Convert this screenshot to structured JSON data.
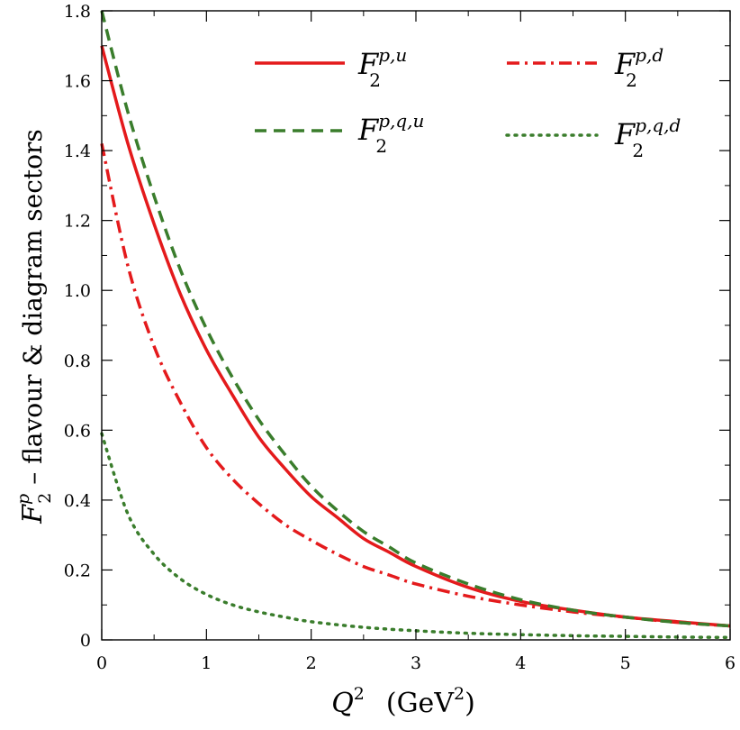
{
  "chart_data": {
    "type": "line",
    "xlabel_main": "Q",
    "xlabel_sup": "2",
    "xlabel_unit_open": "(GeV",
    "xlabel_unit_sup": "2",
    "xlabel_unit_close": ")",
    "ylabel_main": "F",
    "ylabel_sub": "2",
    "ylabel_sup": "p",
    "ylabel_rest": " – flavour & diagram sectors",
    "xlim": [
      0,
      6
    ],
    "ylim": [
      0,
      1.8
    ],
    "x_ticks": [
      "0",
      "1",
      "2",
      "3",
      "4",
      "5",
      "6"
    ],
    "y_ticks": [
      "0",
      "0.2",
      "0.4",
      "0.6",
      "0.8",
      "1.0",
      "1.2",
      "1.4",
      "1.6",
      "1.8"
    ],
    "grid": false,
    "legend_position": "top-right",
    "series": [
      {
        "key": "F2pu",
        "name_main": "F",
        "name_sub": "2",
        "name_sup": "p,u",
        "color": "#e41a1c",
        "style": "solid",
        "x": [
          0,
          0.25,
          0.5,
          0.75,
          1,
          1.25,
          1.5,
          1.75,
          2,
          2.25,
          2.5,
          2.75,
          3,
          3.5,
          4,
          4.5,
          5,
          5.5,
          6
        ],
        "y": [
          1.7,
          1.42,
          1.19,
          0.99,
          0.83,
          0.7,
          0.58,
          0.49,
          0.41,
          0.35,
          0.29,
          0.25,
          0.21,
          0.15,
          0.11,
          0.085,
          0.065,
          0.052,
          0.04
        ]
      },
      {
        "key": "F2pd",
        "name_main": "F",
        "name_sub": "2",
        "name_sup": "p,d",
        "color": "#e41a1c",
        "style": "dashdot",
        "x": [
          0,
          0.25,
          0.5,
          0.75,
          1,
          1.25,
          1.5,
          1.75,
          2,
          2.25,
          2.5,
          2.75,
          3,
          3.5,
          4,
          4.5,
          5,
          5.5,
          6
        ],
        "y": [
          1.42,
          1.07,
          0.84,
          0.68,
          0.55,
          0.46,
          0.39,
          0.33,
          0.285,
          0.245,
          0.21,
          0.185,
          0.16,
          0.125,
          0.1,
          0.08,
          0.065,
          0.05,
          0.04
        ]
      },
      {
        "key": "F2pqu",
        "name_main": "F",
        "name_sub": "2",
        "name_sup": "p,q,u",
        "color": "#3a7d2c",
        "style": "dashed",
        "x": [
          0,
          0.25,
          0.5,
          0.75,
          1,
          1.25,
          1.5,
          1.75,
          2,
          2.25,
          2.5,
          2.75,
          3,
          3.5,
          4,
          4.5,
          5,
          5.5,
          6
        ],
        "y": [
          1.8,
          1.51,
          1.27,
          1.06,
          0.89,
          0.75,
          0.63,
          0.53,
          0.44,
          0.37,
          0.31,
          0.265,
          0.22,
          0.16,
          0.115,
          0.085,
          0.065,
          0.05,
          0.04
        ]
      },
      {
        "key": "F2pqd",
        "name_main": "F",
        "name_sub": "2",
        "name_sup": "p,q,d",
        "color": "#3a7d2c",
        "style": "dotted",
        "x": [
          0,
          0.25,
          0.5,
          0.75,
          1,
          1.25,
          1.5,
          1.75,
          2,
          2.5,
          3,
          3.5,
          4,
          4.5,
          5,
          5.5,
          6
        ],
        "y": [
          0.59,
          0.36,
          0.245,
          0.175,
          0.13,
          0.1,
          0.08,
          0.065,
          0.052,
          0.036,
          0.026,
          0.019,
          0.015,
          0.012,
          0.01,
          0.008,
          0.007
        ]
      }
    ]
  }
}
